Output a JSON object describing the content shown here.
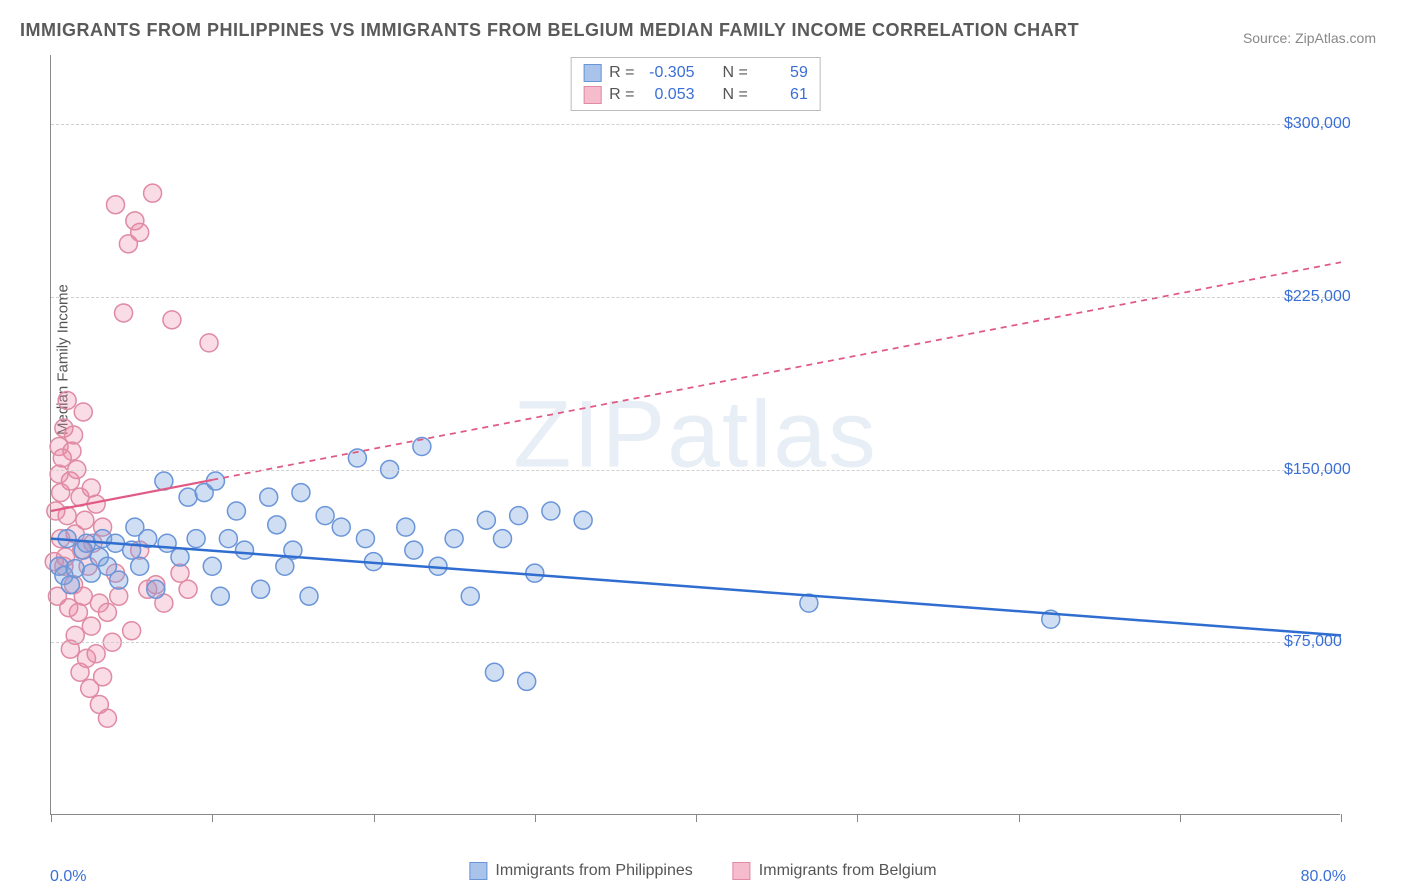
{
  "title": "IMMIGRANTS FROM PHILIPPINES VS IMMIGRANTS FROM BELGIUM MEDIAN FAMILY INCOME CORRELATION CHART",
  "source": "Source: ZipAtlas.com",
  "watermark": "ZIPatlas",
  "ylabel": "Median Family Income",
  "chart": {
    "type": "scatter",
    "xlim": [
      0,
      80
    ],
    "ylim": [
      0,
      330000
    ],
    "x_min_label": "0.0%",
    "x_max_label": "80.0%",
    "y_ticks": [
      75000,
      150000,
      225000,
      300000
    ],
    "y_tick_labels": [
      "$75,000",
      "$150,000",
      "$225,000",
      "$300,000"
    ],
    "x_tick_positions": [
      0,
      10,
      20,
      30,
      40,
      50,
      60,
      70,
      80
    ],
    "grid_color": "#d0d0d0",
    "background_color": "#ffffff",
    "marker_radius": 9,
    "marker_stroke_width": 1.5,
    "series": [
      {
        "name": "Immigrants from Philippines",
        "fill": "rgba(120,160,220,0.35)",
        "stroke": "#6a95d8",
        "swatch_fill": "#a9c3ea",
        "swatch_border": "#6a95d8",
        "R": "-0.305",
        "N": "59",
        "trend": {
          "x1": 0,
          "y1": 120000,
          "x2": 80,
          "y2": 78000,
          "color": "#2f6dd0",
          "width": 2.5,
          "dash": "none",
          "solid_until_x": 80
        },
        "points": [
          [
            0.5,
            108000
          ],
          [
            0.8,
            104000
          ],
          [
            1.0,
            120000
          ],
          [
            1.2,
            100000
          ],
          [
            1.5,
            107000
          ],
          [
            2,
            115000
          ],
          [
            2.2,
            118000
          ],
          [
            2.5,
            105000
          ],
          [
            3,
            112000
          ],
          [
            3.2,
            120000
          ],
          [
            3.5,
            108000
          ],
          [
            4,
            118000
          ],
          [
            4.2,
            102000
          ],
          [
            5,
            115000
          ],
          [
            5.2,
            125000
          ],
          [
            5.5,
            108000
          ],
          [
            6,
            120000
          ],
          [
            6.5,
            98000
          ],
          [
            7,
            145000
          ],
          [
            7.2,
            118000
          ],
          [
            8,
            112000
          ],
          [
            8.5,
            138000
          ],
          [
            9,
            120000
          ],
          [
            9.5,
            140000
          ],
          [
            10,
            108000
          ],
          [
            10.5,
            95000
          ],
          [
            10.2,
            145000
          ],
          [
            11,
            120000
          ],
          [
            11.5,
            132000
          ],
          [
            12,
            115000
          ],
          [
            13,
            98000
          ],
          [
            13.5,
            138000
          ],
          [
            14,
            126000
          ],
          [
            14.5,
            108000
          ],
          [
            15,
            115000
          ],
          [
            15.5,
            140000
          ],
          [
            16,
            95000
          ],
          [
            17,
            130000
          ],
          [
            18,
            125000
          ],
          [
            19,
            155000
          ],
          [
            19.5,
            120000
          ],
          [
            20,
            110000
          ],
          [
            21,
            150000
          ],
          [
            22,
            125000
          ],
          [
            22.5,
            115000
          ],
          [
            23,
            160000
          ],
          [
            24,
            108000
          ],
          [
            25,
            120000
          ],
          [
            26,
            95000
          ],
          [
            27,
            128000
          ],
          [
            27.5,
            62000
          ],
          [
            28,
            120000
          ],
          [
            29,
            130000
          ],
          [
            29.5,
            58000
          ],
          [
            30,
            105000
          ],
          [
            31,
            132000
          ],
          [
            33,
            128000
          ],
          [
            47,
            92000
          ],
          [
            62,
            85000
          ]
        ]
      },
      {
        "name": "Immigrants from Belgium",
        "fill": "rgba(235,140,170,0.30)",
        "stroke": "#e08aa4",
        "swatch_fill": "#f4bccc",
        "swatch_border": "#e08aa4",
        "R": "0.053",
        "N": "61",
        "trend": {
          "x1": 0,
          "y1": 132000,
          "x2": 80,
          "y2": 240000,
          "color": "#e05a85",
          "width": 2.2,
          "dash": "6,5",
          "solid_until_x": 10
        },
        "points": [
          [
            0.2,
            110000
          ],
          [
            0.3,
            132000
          ],
          [
            0.4,
            95000
          ],
          [
            0.5,
            148000
          ],
          [
            0.5,
            160000
          ],
          [
            0.6,
            120000
          ],
          [
            0.6,
            140000
          ],
          [
            0.7,
            155000
          ],
          [
            0.8,
            108000
          ],
          [
            0.8,
            168000
          ],
          [
            0.9,
            112000
          ],
          [
            1.0,
            180000
          ],
          [
            1.0,
            130000
          ],
          [
            1.1,
            90000
          ],
          [
            1.2,
            145000
          ],
          [
            1.2,
            72000
          ],
          [
            1.3,
            158000
          ],
          [
            1.4,
            100000
          ],
          [
            1.4,
            165000
          ],
          [
            1.5,
            78000
          ],
          [
            1.5,
            122000
          ],
          [
            1.6,
            150000
          ],
          [
            1.7,
            88000
          ],
          [
            1.8,
            138000
          ],
          [
            1.8,
            62000
          ],
          [
            1.9,
            115000
          ],
          [
            2.0,
            175000
          ],
          [
            2.0,
            95000
          ],
          [
            2.1,
            128000
          ],
          [
            2.2,
            68000
          ],
          [
            2.3,
            108000
          ],
          [
            2.4,
            55000
          ],
          [
            2.5,
            142000
          ],
          [
            2.5,
            82000
          ],
          [
            2.6,
            118000
          ],
          [
            2.8,
            70000
          ],
          [
            2.8,
            135000
          ],
          [
            3.0,
            92000
          ],
          [
            3.0,
            48000
          ],
          [
            3.2,
            60000
          ],
          [
            3.2,
            125000
          ],
          [
            3.5,
            88000
          ],
          [
            3.5,
            42000
          ],
          [
            3.8,
            75000
          ],
          [
            4.0,
            105000
          ],
          [
            4.0,
            265000
          ],
          [
            4.2,
            95000
          ],
          [
            4.5,
            218000
          ],
          [
            4.8,
            248000
          ],
          [
            5.0,
            80000
          ],
          [
            5.2,
            258000
          ],
          [
            5.5,
            253000
          ],
          [
            5.5,
            115000
          ],
          [
            6.0,
            98000
          ],
          [
            6.3,
            270000
          ],
          [
            6.5,
            100000
          ],
          [
            7.0,
            92000
          ],
          [
            7.5,
            215000
          ],
          [
            8.0,
            105000
          ],
          [
            8.5,
            98000
          ],
          [
            9.8,
            205000
          ]
        ]
      }
    ]
  },
  "legend": {
    "items": [
      {
        "label": "Immigrants from Philippines"
      },
      {
        "label": "Immigrants from Belgium"
      }
    ]
  }
}
